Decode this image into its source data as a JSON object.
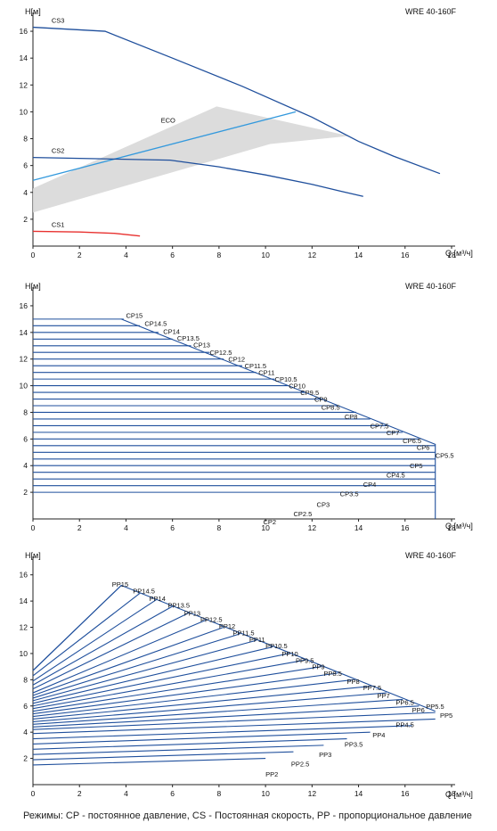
{
  "footnote": "Режимы: CP - постоянное давление, CS - Постоянная скорость, PP - пропорциональное давление",
  "chart_data": [
    {
      "type": "line",
      "title": "WRE 40-160F",
      "ylabel": "H[м]",
      "xlabel": "Q [м³/ч]",
      "xlim": [
        0,
        18
      ],
      "ylim": [
        0,
        17
      ],
      "xticks": [
        0,
        2,
        4,
        6,
        8,
        10,
        12,
        14,
        16,
        18
      ],
      "yticks": [
        2,
        4,
        6,
        8,
        10,
        12,
        14,
        16
      ],
      "grid": false,
      "colors": {
        "curve": "#1f4f9c",
        "cs1": "#e8312f",
        "eco_line": "#3399dd",
        "eco_band": "#d8d8d8"
      },
      "series": [
        {
          "name": "CS3",
          "x": [
            0,
            3.1,
            6,
            9,
            12,
            14,
            15.5,
            17.5
          ],
          "y": [
            16.3,
            16.0,
            14.0,
            11.9,
            9.6,
            7.8,
            6.7,
            5.4
          ]
        },
        {
          "name": "CS2",
          "x": [
            0,
            3,
            5.9,
            8,
            10,
            12,
            13.2,
            14.2
          ],
          "y": [
            6.6,
            6.5,
            6.4,
            5.9,
            5.3,
            4.6,
            4.1,
            3.7
          ]
        },
        {
          "name": "CS1",
          "x": [
            0,
            2,
            3.5,
            4.6
          ],
          "y": [
            1.1,
            1.05,
            0.95,
            0.75
          ]
        }
      ],
      "eco": {
        "label": "ECO",
        "line": {
          "x": [
            0,
            11.3
          ],
          "y": [
            4.9,
            10.0
          ]
        },
        "band": {
          "x": [
            0,
            7.9,
            13.6,
            10.2,
            0
          ],
          "y": [
            4.3,
            10.4,
            8.2,
            7.6,
            2.5
          ]
        }
      }
    },
    {
      "type": "line",
      "title": "WRE 40-160F",
      "ylabel": "H[м]",
      "xlabel": "Q [м³/ч]",
      "xlim": [
        0,
        18
      ],
      "ylim": [
        0,
        17
      ],
      "xticks": [
        0,
        2,
        4,
        6,
        8,
        10,
        12,
        14,
        16,
        18
      ],
      "yticks": [
        2,
        4,
        6,
        8,
        10,
        12,
        14,
        16
      ],
      "grid": false,
      "envelope": {
        "x": [
          3.8,
          17.3,
          17.3
        ],
        "y": [
          15.0,
          5.6,
          0
        ]
      },
      "series": [
        {
          "name": "CP15",
          "h": 15.0,
          "q_max": 3.9
        },
        {
          "name": "CP14.5",
          "h": 14.5,
          "q_max": 4.6
        },
        {
          "name": "CP14",
          "h": 14.0,
          "q_max": 5.4
        },
        {
          "name": "CP13.5",
          "h": 13.5,
          "q_max": 6.0
        },
        {
          "name": "CP13",
          "h": 13.0,
          "q_max": 6.8
        },
        {
          "name": "CP12.5",
          "h": 12.5,
          "q_max": 7.6
        },
        {
          "name": "CP12",
          "h": 12.0,
          "q_max": 8.2
        },
        {
          "name": "CP11.5",
          "h": 11.5,
          "q_max": 9.0
        },
        {
          "name": "CP11",
          "h": 11.0,
          "q_max": 9.6
        },
        {
          "name": "CP10.5",
          "h": 10.5,
          "q_max": 10.4
        },
        {
          "name": "CP10",
          "h": 10.0,
          "q_max": 11.0
        },
        {
          "name": "CP9.5",
          "h": 9.5,
          "q_max": 11.7
        },
        {
          "name": "CP9",
          "h": 9.0,
          "q_max": 12.4
        },
        {
          "name": "CP8.5",
          "h": 8.5,
          "q_max": 13.1
        },
        {
          "name": "CP8",
          "h": 8.0,
          "q_max": 13.9
        },
        {
          "name": "CP7.5",
          "h": 7.5,
          "q_max": 14.5
        },
        {
          "name": "CP7",
          "h": 7.0,
          "q_max": 15.2
        },
        {
          "name": "CP6.5",
          "h": 6.5,
          "q_max": 15.9
        },
        {
          "name": "CP6",
          "h": 6.0,
          "q_max": 16.6
        },
        {
          "name": "CP5.5",
          "h": 5.5,
          "q_max": 17.3
        },
        {
          "name": "CP5",
          "h": 5.0,
          "q_max": 17.3
        },
        {
          "name": "CP4.5",
          "h": 4.5,
          "q_max": 17.3
        },
        {
          "name": "CP4",
          "h": 4.0,
          "q_max": 17.3
        },
        {
          "name": "CP3.5",
          "h": 3.5,
          "q_max": 17.3
        },
        {
          "name": "CP3",
          "h": 3.0,
          "q_max": 17.3
        },
        {
          "name": "CP2.5",
          "h": 2.5,
          "q_max": 17.3
        },
        {
          "name": "CP2",
          "h": 2.0,
          "q_max": 17.3
        }
      ],
      "labels": [
        {
          "text": "CP15",
          "x": 4.0,
          "y": 15.3
        },
        {
          "text": "CP14.5",
          "x": 4.8,
          "y": 14.7
        },
        {
          "text": "CP14",
          "x": 5.6,
          "y": 14.1
        },
        {
          "text": "CP13.5",
          "x": 6.2,
          "y": 13.6
        },
        {
          "text": "CP13",
          "x": 6.9,
          "y": 13.1
        },
        {
          "text": "CP12.5",
          "x": 7.6,
          "y": 12.5
        },
        {
          "text": "CP12",
          "x": 8.4,
          "y": 12.0
        },
        {
          "text": "CP11.5",
          "x": 9.1,
          "y": 11.5
        },
        {
          "text": "CP11",
          "x": 9.7,
          "y": 11.0
        },
        {
          "text": "CP10.5",
          "x": 10.4,
          "y": 10.5
        },
        {
          "text": "CP10",
          "x": 11.0,
          "y": 10.0
        },
        {
          "text": "CP9.5",
          "x": 11.5,
          "y": 9.5
        },
        {
          "text": "CP9",
          "x": 12.1,
          "y": 9.0
        },
        {
          "text": "CP8.5",
          "x": 12.4,
          "y": 8.4
        },
        {
          "text": "CP8",
          "x": 13.4,
          "y": 7.7
        },
        {
          "text": "CP7.5",
          "x": 14.5,
          "y": 7.0
        },
        {
          "text": "CP7",
          "x": 15.2,
          "y": 6.5
        },
        {
          "text": "CP6.5",
          "x": 15.9,
          "y": 5.9
        },
        {
          "text": "CP6",
          "x": 16.5,
          "y": 5.4
        },
        {
          "text": "CP5.5",
          "x": 17.3,
          "y": 4.8
        },
        {
          "text": "CP5",
          "x": 16.2,
          "y": 4.0
        },
        {
          "text": "CP4.5",
          "x": 15.2,
          "y": 3.3
        },
        {
          "text": "CP4",
          "x": 14.2,
          "y": 2.6
        },
        {
          "text": "CP3.5",
          "x": 13.2,
          "y": 1.9
        },
        {
          "text": "CP3",
          "x": 12.2,
          "y": 1.1
        },
        {
          "text": "CP2.5",
          "x": 11.2,
          "y": 0.4
        },
        {
          "text": "CP2",
          "x": 9.9,
          "y": -0.2
        }
      ]
    },
    {
      "type": "line",
      "title": "WRE 40-160F",
      "ylabel": "H[м]",
      "xlabel": "Q [м³/ч]",
      "xlim": [
        0,
        18
      ],
      "ylim": [
        0,
        17
      ],
      "xticks": [
        0,
        2,
        4,
        6,
        8,
        10,
        12,
        14,
        16,
        18
      ],
      "yticks": [
        2,
        4,
        6,
        8,
        10,
        12,
        14,
        16
      ],
      "grid": false,
      "envelope": {
        "x": [
          0,
          3.8,
          17.3
        ],
        "y": [
          8.7,
          15.2,
          5.6
        ]
      },
      "series": [
        {
          "name": "PP15",
          "h0": 8.7,
          "q_end": 3.8,
          "h_end": 15.2
        },
        {
          "name": "PP14.5",
          "h0": 8.3,
          "q_end": 4.6,
          "h_end": 14.6
        },
        {
          "name": "PP14",
          "h0": 7.9,
          "q_end": 5.3,
          "h_end": 14.1
        },
        {
          "name": "PP13.5",
          "h0": 7.6,
          "q_end": 6.0,
          "h_end": 13.6
        },
        {
          "name": "PP13",
          "h0": 7.3,
          "q_end": 6.7,
          "h_end": 13.1
        },
        {
          "name": "PP12.5",
          "h0": 7.0,
          "q_end": 7.5,
          "h_end": 12.6
        },
        {
          "name": "PP12",
          "h0": 6.8,
          "q_end": 8.2,
          "h_end": 12.0
        },
        {
          "name": "PP11.5",
          "h0": 6.6,
          "q_end": 8.9,
          "h_end": 11.5
        },
        {
          "name": "PP11",
          "h0": 6.4,
          "q_end": 9.6,
          "h_end": 11.0
        },
        {
          "name": "PP10.5",
          "h0": 6.2,
          "q_end": 10.3,
          "h_end": 10.5
        },
        {
          "name": "PP10",
          "h0": 6.0,
          "q_end": 11.0,
          "h_end": 10.0
        },
        {
          "name": "PP9.5",
          "h0": 5.8,
          "q_end": 11.7,
          "h_end": 9.5
        },
        {
          "name": "PP9",
          "h0": 5.6,
          "q_end": 12.4,
          "h_end": 9.0
        },
        {
          "name": "PP8.5",
          "h0": 5.4,
          "q_end": 13.1,
          "h_end": 8.5
        },
        {
          "name": "PP8",
          "h0": 5.2,
          "q_end": 13.8,
          "h_end": 8.0
        },
        {
          "name": "PP7.5",
          "h0": 5.0,
          "q_end": 14.5,
          "h_end": 7.5
        },
        {
          "name": "PP7",
          "h0": 4.8,
          "q_end": 15.2,
          "h_end": 7.0
        },
        {
          "name": "PP6.5",
          "h0": 4.6,
          "q_end": 15.9,
          "h_end": 6.5
        },
        {
          "name": "PP6",
          "h0": 4.4,
          "q_end": 16.6,
          "h_end": 6.0
        },
        {
          "name": "PP5.5",
          "h0": 4.2,
          "q_end": 17.3,
          "h_end": 5.5
        },
        {
          "name": "PP5",
          "h0": 3.9,
          "q_end": 17.3,
          "h_end": 5.0
        },
        {
          "name": "PP4.5",
          "h0": 3.5,
          "q_end": 16.3,
          "h_end": 4.5
        },
        {
          "name": "PP4",
          "h0": 3.1,
          "q_end": 14.5,
          "h_end": 4.0
        },
        {
          "name": "PP3.5",
          "h0": 2.7,
          "q_end": 13.5,
          "h_end": 3.5
        },
        {
          "name": "PP3",
          "h0": 2.3,
          "q_end": 12.5,
          "h_end": 3.0
        },
        {
          "name": "PP2.5",
          "h0": 1.9,
          "q_end": 11.2,
          "h_end": 2.5
        },
        {
          "name": "PP2",
          "h0": 1.5,
          "q_end": 10.0,
          "h_end": 2.0
        }
      ],
      "labels": [
        {
          "text": "PP15",
          "x": 3.4,
          "y": 15.3
        },
        {
          "text": "PP14.5",
          "x": 4.3,
          "y": 14.8
        },
        {
          "text": "PP14",
          "x": 5.0,
          "y": 14.2
        },
        {
          "text": "PP13.5",
          "x": 5.8,
          "y": 13.7
        },
        {
          "text": "PP13",
          "x": 6.5,
          "y": 13.1
        },
        {
          "text": "PP12.5",
          "x": 7.2,
          "y": 12.6
        },
        {
          "text": "PP12",
          "x": 8.0,
          "y": 12.1
        },
        {
          "text": "PP11.5",
          "x": 8.6,
          "y": 11.6
        },
        {
          "text": "PP11",
          "x": 9.3,
          "y": 11.1
        },
        {
          "text": "PP10.5",
          "x": 10.0,
          "y": 10.6
        },
        {
          "text": "PP10",
          "x": 10.7,
          "y": 10.0
        },
        {
          "text": "PP9.5",
          "x": 11.3,
          "y": 9.5
        },
        {
          "text": "PP9",
          "x": 12.0,
          "y": 9.0
        },
        {
          "text": "PP8.5",
          "x": 12.5,
          "y": 8.5
        },
        {
          "text": "PP8",
          "x": 13.5,
          "y": 7.9
        },
        {
          "text": "PP7.5",
          "x": 14.2,
          "y": 7.4
        },
        {
          "text": "PP7",
          "x": 14.8,
          "y": 6.8
        },
        {
          "text": "PP6.5",
          "x": 15.6,
          "y": 6.3
        },
        {
          "text": "PP6",
          "x": 16.3,
          "y": 5.7
        },
        {
          "text": "PP5.5",
          "x": 16.9,
          "y": 6.0
        },
        {
          "text": "PP5",
          "x": 17.5,
          "y": 5.3
        },
        {
          "text": "PP4.5",
          "x": 15.6,
          "y": 4.6
        },
        {
          "text": "PP4",
          "x": 14.6,
          "y": 3.8
        },
        {
          "text": "PP3.5",
          "x": 13.4,
          "y": 3.1
        },
        {
          "text": "PP3",
          "x": 12.3,
          "y": 2.3
        },
        {
          "text": "PP2.5",
          "x": 11.1,
          "y": 1.6
        },
        {
          "text": "PP2",
          "x": 10.0,
          "y": 0.8
        }
      ]
    }
  ]
}
